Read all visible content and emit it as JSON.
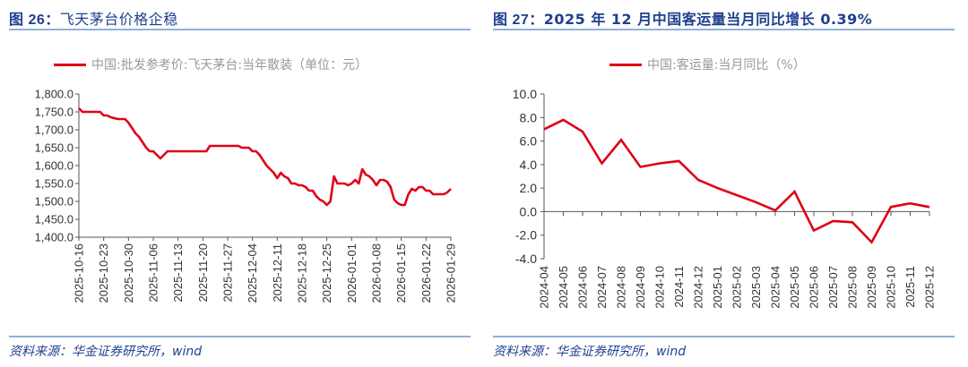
{
  "left": {
    "title_prefix": "图 26：",
    "title_text": "飞天茅台价格企稳",
    "legend": "中国:批发参考价:飞天茅台:当年散装（单位：元）",
    "source": "资料来源：华金证券研究所，wind",
    "line_color": "#e00018"
  },
  "right": {
    "title_prefix": "图 27：",
    "title_text": "2025 年 12 月中国客运量当月同比增长 0.39%",
    "legend": "中国:客运量:当月同比（%）",
    "source": "资料来源：华金证券研究所，wind",
    "line_color": "#e00018"
  },
  "chart_data": [
    {
      "type": "line",
      "title": "飞天茅台价格企稳",
      "legend": [
        "中国:批发参考价:飞天茅台:当年散装（单位：元）"
      ],
      "xlabel": "",
      "ylabel": "元",
      "ylim": [
        1400,
        1800
      ],
      "yticks": [
        "1,400.0",
        "1,450.0",
        "1,500.0",
        "1,550.0",
        "1,600.0",
        "1,650.0",
        "1,700.0",
        "1,750.0",
        "1,800.0"
      ],
      "xticks": [
        "2025-10-16",
        "2025-10-23",
        "2025-10-30",
        "2025-11-06",
        "2025-11-13",
        "2025-11-20",
        "2025-11-27",
        "2025-12-04",
        "2025-12-11",
        "2025-12-18",
        "2025-12-25",
        "2026-01-01",
        "2026-01-08",
        "2026-01-15",
        "2026-01-22",
        "2026-01-29"
      ],
      "grid": false,
      "series": [
        {
          "name": "中国:批发参考价:飞天茅台:当年散装",
          "points": [
            [
              "2025-10-16",
              1760
            ],
            [
              "2025-10-17",
              1750
            ],
            [
              "2025-10-20",
              1750
            ],
            [
              "2025-10-22",
              1750
            ],
            [
              "2025-10-23",
              1740
            ],
            [
              "2025-10-24",
              1740
            ],
            [
              "2025-10-25",
              1735
            ],
            [
              "2025-10-27",
              1730
            ],
            [
              "2025-10-29",
              1730
            ],
            [
              "2025-10-30",
              1720
            ],
            [
              "2025-10-31",
              1705
            ],
            [
              "2025-11-01",
              1690
            ],
            [
              "2025-11-02",
              1680
            ],
            [
              "2025-11-03",
              1665
            ],
            [
              "2025-11-04",
              1650
            ],
            [
              "2025-11-05",
              1640
            ],
            [
              "2025-11-06",
              1640
            ],
            [
              "2025-11-07",
              1630
            ],
            [
              "2025-11-08",
              1620
            ],
            [
              "2025-11-09",
              1630
            ],
            [
              "2025-11-10",
              1640
            ],
            [
              "2025-11-14",
              1640
            ],
            [
              "2025-11-20",
              1640
            ],
            [
              "2025-11-21",
              1640
            ],
            [
              "2025-11-22",
              1655
            ],
            [
              "2025-11-27",
              1655
            ],
            [
              "2025-11-30",
              1655
            ],
            [
              "2025-12-01",
              1650
            ],
            [
              "2025-12-03",
              1650
            ],
            [
              "2025-12-04",
              1640
            ],
            [
              "2025-12-05",
              1640
            ],
            [
              "2025-12-06",
              1630
            ],
            [
              "2025-12-07",
              1615
            ],
            [
              "2025-12-08",
              1600
            ],
            [
              "2025-12-09",
              1590
            ],
            [
              "2025-12-10",
              1580
            ],
            [
              "2025-12-11",
              1565
            ],
            [
              "2025-12-12",
              1580
            ],
            [
              "2025-12-13",
              1570
            ],
            [
              "2025-12-14",
              1565
            ],
            [
              "2025-12-15",
              1550
            ],
            [
              "2025-12-16",
              1550
            ],
            [
              "2025-12-17",
              1545
            ],
            [
              "2025-12-18",
              1545
            ],
            [
              "2025-12-19",
              1540
            ],
            [
              "2025-12-20",
              1530
            ],
            [
              "2025-12-21",
              1530
            ],
            [
              "2025-12-22",
              1515
            ],
            [
              "2025-12-23",
              1505
            ],
            [
              "2025-12-24",
              1500
            ],
            [
              "2025-12-25",
              1490
            ],
            [
              "2025-12-26",
              1500
            ],
            [
              "2025-12-27",
              1570
            ],
            [
              "2025-12-28",
              1550
            ],
            [
              "2025-12-29",
              1550
            ],
            [
              "2025-12-30",
              1550
            ],
            [
              "2025-12-31",
              1545
            ],
            [
              "2026-01-01",
              1550
            ],
            [
              "2026-01-02",
              1560
            ],
            [
              "2026-01-03",
              1550
            ],
            [
              "2026-01-04",
              1590
            ],
            [
              "2026-01-05",
              1575
            ],
            [
              "2026-01-06",
              1570
            ],
            [
              "2026-01-07",
              1560
            ],
            [
              "2026-01-08",
              1545
            ],
            [
              "2026-01-09",
              1560
            ],
            [
              "2026-01-10",
              1560
            ],
            [
              "2026-01-11",
              1555
            ],
            [
              "2026-01-12",
              1540
            ],
            [
              "2026-01-13",
              1505
            ],
            [
              "2026-01-14",
              1495
            ],
            [
              "2026-01-15",
              1490
            ],
            [
              "2026-01-16",
              1490
            ],
            [
              "2026-01-17",
              1520
            ],
            [
              "2026-01-18",
              1535
            ],
            [
              "2026-01-19",
              1530
            ],
            [
              "2026-01-20",
              1540
            ],
            [
              "2026-01-21",
              1540
            ],
            [
              "2026-01-22",
              1530
            ],
            [
              "2026-01-23",
              1530
            ],
            [
              "2026-01-24",
              1520
            ],
            [
              "2026-01-27",
              1520
            ],
            [
              "2026-01-28",
              1525
            ],
            [
              "2026-01-29",
              1535
            ]
          ]
        }
      ]
    },
    {
      "type": "line",
      "title": "2025 年 12 月中国客运量当月同比增长 0.39%",
      "legend": [
        "中国:客运量:当月同比（%）"
      ],
      "xlabel": "",
      "ylabel": "%",
      "ylim": [
        -4,
        10
      ],
      "yticks": [
        "-4.0",
        "-2.0",
        "0.0",
        "2.0",
        "4.0",
        "6.0",
        "8.0",
        "10.0"
      ],
      "grid": false,
      "categories": [
        "2024-04",
        "2024-05",
        "2024-06",
        "2024-07",
        "2024-08",
        "2024-09",
        "2024-10",
        "2024-11",
        "2024-12",
        "2025-01",
        "2025-02",
        "2025-03",
        "2025-04",
        "2025-05",
        "2025-06",
        "2025-07",
        "2025-08",
        "2025-09",
        "2025-10",
        "2025-11",
        "2025-12"
      ],
      "series": [
        {
          "name": "中国:客运量:当月同比",
          "values": [
            7.0,
            7.8,
            6.8,
            4.1,
            6.1,
            3.8,
            4.1,
            4.3,
            2.7,
            2.0,
            1.4,
            0.8,
            0.1,
            1.7,
            -1.6,
            -0.8,
            -0.9,
            -2.6,
            0.4,
            0.7,
            0.39
          ]
        }
      ]
    }
  ]
}
